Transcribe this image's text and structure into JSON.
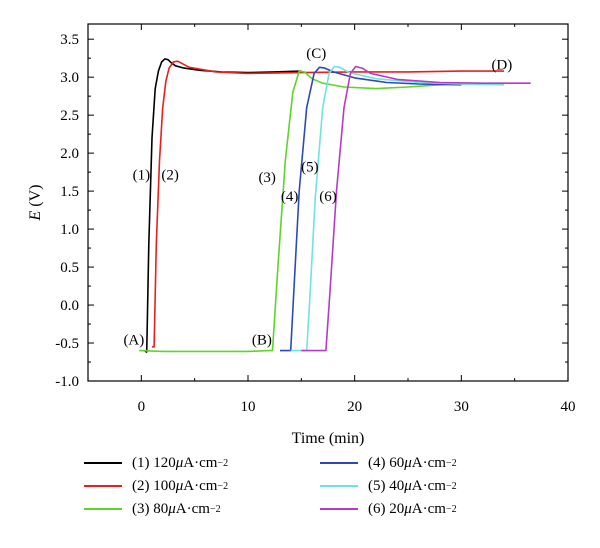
{
  "chart_data": {
    "type": "line",
    "title": "",
    "xlabel": "Time (min)",
    "ylabel_var": "E",
    "ylabel_unit": " (V)",
    "xlim": [
      -5,
      40
    ],
    "ylim": [
      -1.0,
      3.7
    ],
    "x_ticks": [
      0,
      10,
      20,
      30,
      40
    ],
    "x_tick_labels": [
      "0",
      "10",
      "20",
      "30",
      "40"
    ],
    "y_ticks": [
      -1.0,
      -0.5,
      0.0,
      0.5,
      1.0,
      1.5,
      2.0,
      2.5,
      3.0,
      3.5
    ],
    "y_tick_labels": [
      "-1.0",
      "-0.5",
      "0.0",
      "0.5",
      "1.0",
      "1.5",
      "2.0",
      "2.5",
      "3.0",
      "3.5"
    ],
    "grid": false,
    "legend_position": "bottom",
    "series": [
      {
        "id": "s1",
        "color": "#000000",
        "legend": {
          "num": "(1) 120 ",
          "mu": "μ",
          "unit": "A·cm",
          "exp": "−2"
        },
        "x": [
          0.3,
          0.5,
          0.55,
          0.7,
          1.0,
          1.3,
          1.6,
          1.9,
          2.2,
          2.5,
          2.8,
          3.2,
          4.0,
          5.5,
          7.5,
          10.0,
          12.5,
          15.0
        ],
        "y": [
          -0.6,
          -0.62,
          -0.3,
          0.8,
          2.2,
          2.85,
          3.08,
          3.2,
          3.24,
          3.23,
          3.19,
          3.15,
          3.12,
          3.09,
          3.07,
          3.06,
          3.07,
          3.08
        ]
      },
      {
        "id": "s2",
        "color": "#e8201d",
        "legend": {
          "num": "(2) 100 ",
          "mu": "μ",
          "unit": "A·cm",
          "exp": "−2"
        },
        "x": [
          1.0,
          1.2,
          1.4,
          1.7,
          2.0,
          2.3,
          2.6,
          3.0,
          3.4,
          4.5,
          7.0,
          10.0,
          15.0,
          20.0,
          25.0,
          30.0,
          34.0
        ],
        "y": [
          -0.55,
          -0.55,
          0.8,
          1.9,
          2.6,
          2.95,
          3.12,
          3.2,
          3.21,
          3.13,
          3.07,
          3.05,
          3.06,
          3.07,
          3.07,
          3.08,
          3.08
        ]
      },
      {
        "id": "s3",
        "color": "#5fd42a",
        "legend": {
          "num": "(3) 80 ",
          "mu": "μ",
          "unit": "A·cm",
          "exp": "−2"
        },
        "x": [
          -0.2,
          2.0,
          6.0,
          10.0,
          12.0,
          12.3,
          12.8,
          13.5,
          14.2,
          14.8,
          15.3,
          16.0,
          17.0,
          19.0,
          22.0,
          25.0,
          28.0,
          31.0
        ],
        "y": [
          -0.6,
          -0.61,
          -0.61,
          -0.61,
          -0.6,
          -0.6,
          0.5,
          1.9,
          2.8,
          3.08,
          3.07,
          2.98,
          2.92,
          2.87,
          2.85,
          2.87,
          2.9,
          2.91
        ]
      },
      {
        "id": "s4",
        "color": "#2b4ab8",
        "legend": {
          "num": "(4) 60 ",
          "mu": "μ",
          "unit": "A·cm",
          "exp": "−2"
        },
        "x": [
          13.0,
          14.0,
          14.3,
          14.8,
          15.5,
          16.2,
          16.7,
          17.2,
          18.0,
          20.0,
          23.0,
          26.0,
          30.0
        ],
        "y": [
          -0.6,
          -0.6,
          0.2,
          1.5,
          2.6,
          3.05,
          3.13,
          3.12,
          3.07,
          2.99,
          2.93,
          2.91,
          2.9
        ]
      },
      {
        "id": "s5",
        "color": "#6fe3e0",
        "legend": {
          "num": "(5) 40 ",
          "mu": "μ",
          "unit": "A·cm",
          "exp": "−2"
        },
        "x": [
          14.0,
          15.5,
          15.8,
          16.3,
          17.0,
          17.6,
          18.1,
          18.6,
          19.5,
          22.0,
          26.0,
          30.0,
          34.0
        ],
        "y": [
          -0.6,
          -0.6,
          0.1,
          1.4,
          2.6,
          3.05,
          3.14,
          3.13,
          3.06,
          2.98,
          2.93,
          2.91,
          2.9
        ]
      },
      {
        "id": "s6",
        "color": "#b63ac6",
        "legend": {
          "num": "(6) 20 ",
          "mu": "μ",
          "unit": "A·cm",
          "exp": "−2"
        },
        "x": [
          15.0,
          17.3,
          17.7,
          18.3,
          19.0,
          19.6,
          20.1,
          20.7,
          21.5,
          24.0,
          28.0,
          32.0,
          36.5
        ],
        "y": [
          -0.6,
          -0.6,
          0.2,
          1.5,
          2.6,
          3.05,
          3.14,
          3.12,
          3.05,
          2.97,
          2.93,
          2.92,
          2.92
        ]
      }
    ],
    "annotations": [
      {
        "text": "(1)",
        "x": 0.0,
        "y": 1.65
      },
      {
        "text": "(2)",
        "x": 2.7,
        "y": 1.65
      },
      {
        "text": "(3)",
        "x": 11.8,
        "y": 1.62
      },
      {
        "text": "(4)",
        "x": 13.9,
        "y": 1.37
      },
      {
        "text": "(5)",
        "x": 15.8,
        "y": 1.76
      },
      {
        "text": "(6)",
        "x": 17.5,
        "y": 1.37
      },
      {
        "text": "(A)",
        "x": -0.7,
        "y": -0.52
      },
      {
        "text": "(B)",
        "x": 11.3,
        "y": -0.52
      },
      {
        "text": "(C)",
        "x": 16.4,
        "y": 3.25
      },
      {
        "text": "(D)",
        "x": 33.8,
        "y": 3.1
      }
    ]
  }
}
